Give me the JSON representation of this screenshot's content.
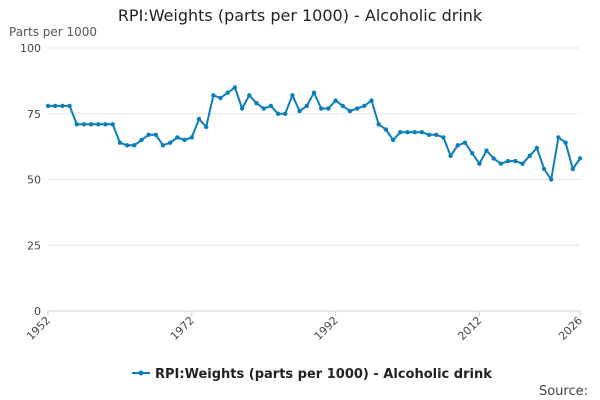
{
  "chart_data": {
    "type": "line",
    "title": "RPI:Weights (parts per 1000) - Alcoholic drink",
    "ylabel": "Parts per 1000",
    "xlabel": "",
    "ylim": [
      0,
      100
    ],
    "yticks": [
      "0",
      "25",
      "50",
      "75",
      "100"
    ],
    "xticks": [
      "1952",
      "1972",
      "1992",
      "2012",
      "2026"
    ],
    "xlim": [
      1952,
      2026
    ],
    "grid": true,
    "legend_position": "bottom-center",
    "color": "#0b7dba",
    "series": [
      {
        "name": "RPI:Weights (parts per 1000) - Alcoholic drink",
        "x": [
          1952,
          1953,
          1954,
          1955,
          1956,
          1957,
          1958,
          1959,
          1960,
          1961,
          1962,
          1963,
          1964,
          1965,
          1966,
          1967,
          1968,
          1969,
          1970,
          1971,
          1972,
          1973,
          1974,
          1975,
          1976,
          1977,
          1978,
          1979,
          1980,
          1981,
          1982,
          1983,
          1984,
          1985,
          1986,
          1987,
          1988,
          1989,
          1990,
          1991,
          1992,
          1993,
          1994,
          1995,
          1996,
          1997,
          1998,
          1999,
          2000,
          2001,
          2002,
          2003,
          2004,
          2005,
          2006,
          2007,
          2008,
          2009,
          2010,
          2011,
          2012,
          2013,
          2014,
          2015,
          2016,
          2017,
          2018,
          2019,
          2020,
          2021,
          2022,
          2023,
          2024,
          2025,
          2026
        ],
        "values": [
          78,
          78,
          78,
          78,
          71,
          71,
          71,
          71,
          71,
          71,
          64,
          63,
          63,
          65,
          67,
          67,
          63,
          64,
          66,
          65,
          66,
          73,
          70,
          82,
          81,
          83,
          85,
          77,
          82,
          79,
          77,
          78,
          75,
          75,
          82,
          76,
          78,
          83,
          77,
          77,
          80,
          78,
          76,
          77,
          78,
          80,
          71,
          69,
          65,
          68,
          68,
          68,
          68,
          67,
          67,
          66,
          59,
          63,
          64,
          60,
          56,
          61,
          58,
          56,
          57,
          57,
          56,
          59,
          62,
          54,
          50,
          66,
          64,
          54,
          58
        ]
      }
    ]
  },
  "legend": {
    "label": "RPI:Weights (parts per 1000) - Alcoholic drink"
  },
  "footer": {
    "source_label": "Source:"
  }
}
